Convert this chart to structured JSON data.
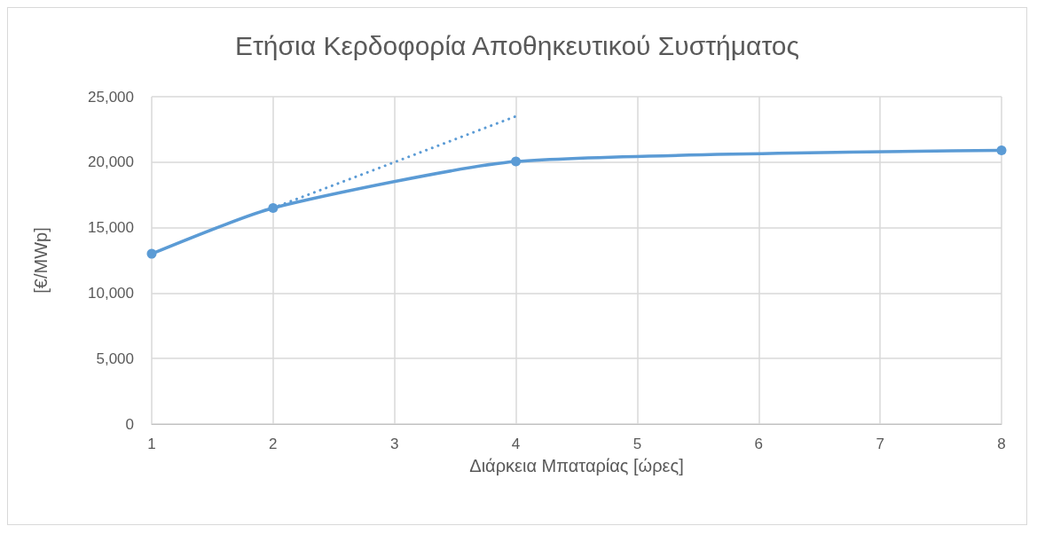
{
  "chart_data": {
    "type": "line",
    "title": "Ετήσια Κερδοφορία Αποθηκευτικού Συστήματος",
    "xlabel": "Διάρκεια Μπαταρίας [ώρες]",
    "ylabel": "[€/MWp]",
    "series": [
      {
        "color": "#5b9bd5",
        "x": [
          1,
          2,
          4,
          8
        ],
        "values": [
          13000,
          16500,
          20050,
          20900
        ],
        "marker": "circle",
        "line_style": "solid"
      },
      {
        "color": "#5b9bd5",
        "x": [
          2,
          4
        ],
        "values": [
          16500,
          23500
        ],
        "marker": "none",
        "line_style": "dotted"
      }
    ],
    "xlim": [
      1,
      8
    ],
    "xticks": [
      1,
      2,
      3,
      4,
      5,
      6,
      7,
      8
    ],
    "ylim": [
      0,
      25000
    ],
    "yticks": [
      0,
      {
        "value": 5000,
        "label": "5,000"
      },
      {
        "value": 10000,
        "label": "10,000"
      },
      {
        "value": 15000,
        "label": "15,000"
      },
      {
        "value": 20000,
        "label": "20,000"
      },
      {
        "value": 25000,
        "label": "25,000"
      }
    ],
    "grid": true
  }
}
